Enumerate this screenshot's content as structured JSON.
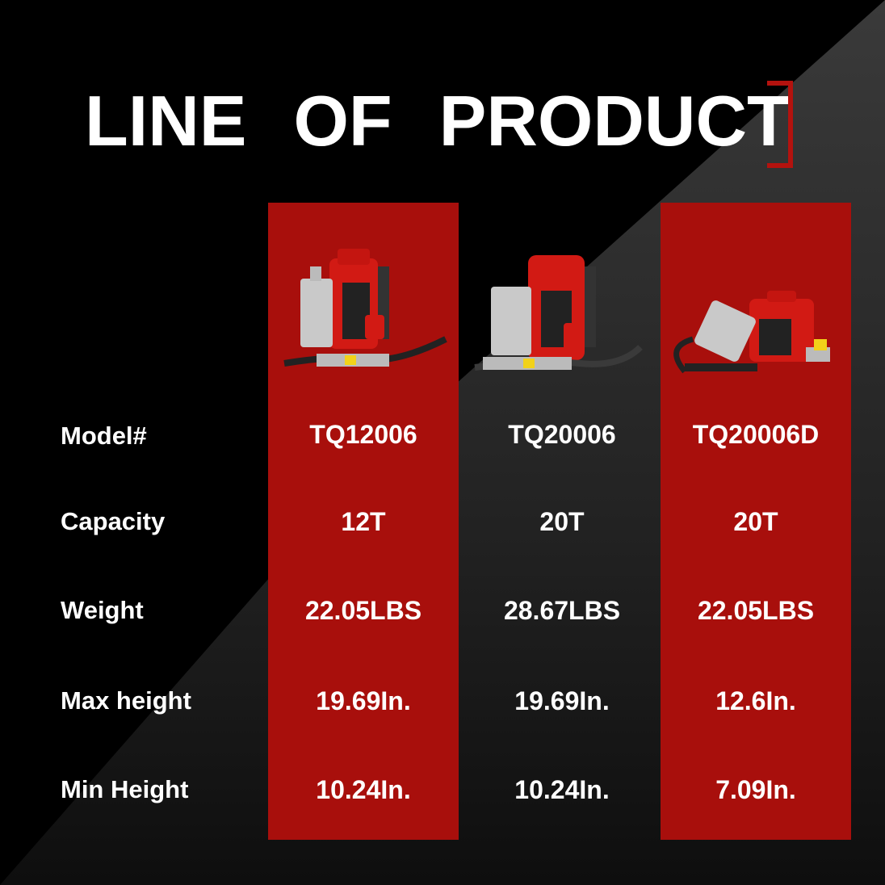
{
  "title": {
    "words": [
      "LINE",
      "OF",
      "PRODUCT"
    ]
  },
  "colors": {
    "red": "#a80f0c",
    "background": "#000000",
    "wedge": "#2a2a2a"
  },
  "row_labels": [
    "Model#",
    "Capacity",
    "Weight",
    "Max  height",
    "Min  Height"
  ],
  "products": [
    {
      "image": "air-hydraulic-bottle-jack-12t",
      "highlighted": true,
      "values": [
        "TQ12006",
        "12T",
        "22.05LBS",
        "19.69In.",
        "10.24In."
      ]
    },
    {
      "image": "air-hydraulic-bottle-jack-20t",
      "highlighted": false,
      "values": [
        "TQ20006",
        "20T",
        "28.67LBS",
        "19.69In.",
        "10.24In."
      ]
    },
    {
      "image": "air-hydraulic-bottle-jack-20t-low",
      "highlighted": true,
      "values": [
        "TQ20006D",
        "20T",
        "22.05LBS",
        "12.6In.",
        "7.09In."
      ]
    }
  ]
}
